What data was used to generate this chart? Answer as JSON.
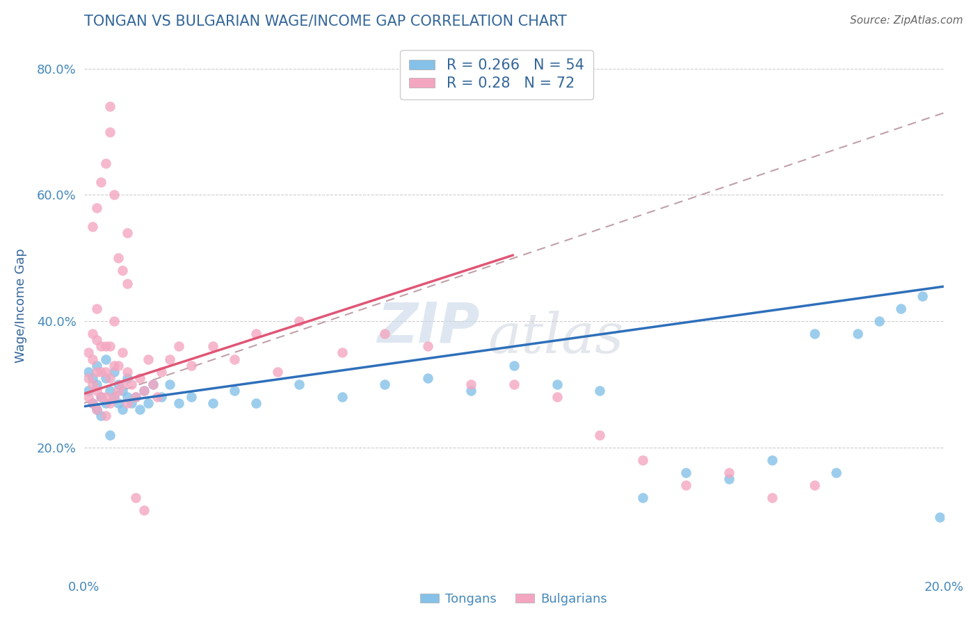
{
  "title": "TONGAN VS BULGARIAN WAGE/INCOME GAP CORRELATION CHART",
  "source": "Source: ZipAtlas.com",
  "ylabel": "Wage/Income Gap",
  "xlim": [
    0.0,
    0.2
  ],
  "ylim": [
    0.0,
    0.85
  ],
  "xticks": [
    0.0,
    0.05,
    0.1,
    0.15,
    0.2
  ],
  "xtick_labels": [
    "0.0%",
    "",
    "",
    "",
    "20.0%"
  ],
  "yticks": [
    0.2,
    0.4,
    0.6,
    0.8
  ],
  "ytick_labels": [
    "20.0%",
    "40.0%",
    "60.0%",
    "80.0%"
  ],
  "tongan_color": "#85c1e8",
  "bulgarian_color": "#f4a6c0",
  "tongan_line_color": "#2e6fba",
  "bulgarian_line_color": "#e05575",
  "R_tongan": 0.266,
  "N_tongan": 54,
  "R_bulgarian": 0.28,
  "N_bulgarian": 72,
  "background_color": "#ffffff",
  "grid_color": "#c8c8c8",
  "title_color": "#336699",
  "axis_label_color": "#336699",
  "tick_color": "#4488bb",
  "legend_text_color": "#336699",
  "watermark_zip": "ZIP",
  "watermark_atlas": "atlas",
  "tongan_scatter_x": [
    0.001,
    0.001,
    0.002,
    0.002,
    0.003,
    0.003,
    0.003,
    0.004,
    0.004,
    0.005,
    0.005,
    0.005,
    0.006,
    0.006,
    0.007,
    0.007,
    0.008,
    0.008,
    0.009,
    0.009,
    0.01,
    0.01,
    0.011,
    0.012,
    0.013,
    0.014,
    0.015,
    0.016,
    0.018,
    0.02,
    0.022,
    0.025,
    0.03,
    0.035,
    0.04,
    0.05,
    0.06,
    0.07,
    0.08,
    0.09,
    0.1,
    0.11,
    0.12,
    0.13,
    0.14,
    0.15,
    0.16,
    0.17,
    0.175,
    0.18,
    0.185,
    0.19,
    0.195,
    0.199
  ],
  "tongan_scatter_y": [
    0.29,
    0.32,
    0.27,
    0.31,
    0.26,
    0.3,
    0.33,
    0.28,
    0.25,
    0.27,
    0.31,
    0.34,
    0.29,
    0.22,
    0.28,
    0.32,
    0.27,
    0.3,
    0.26,
    0.29,
    0.28,
    0.31,
    0.27,
    0.28,
    0.26,
    0.29,
    0.27,
    0.3,
    0.28,
    0.3,
    0.27,
    0.28,
    0.27,
    0.29,
    0.27,
    0.3,
    0.28,
    0.3,
    0.31,
    0.29,
    0.33,
    0.3,
    0.29,
    0.12,
    0.16,
    0.15,
    0.18,
    0.38,
    0.16,
    0.38,
    0.4,
    0.42,
    0.44,
    0.09
  ],
  "bulgarian_scatter_x": [
    0.001,
    0.001,
    0.001,
    0.002,
    0.002,
    0.002,
    0.002,
    0.003,
    0.003,
    0.003,
    0.003,
    0.003,
    0.004,
    0.004,
    0.004,
    0.005,
    0.005,
    0.005,
    0.005,
    0.006,
    0.006,
    0.006,
    0.007,
    0.007,
    0.007,
    0.008,
    0.008,
    0.009,
    0.009,
    0.01,
    0.01,
    0.011,
    0.012,
    0.013,
    0.014,
    0.015,
    0.016,
    0.017,
    0.018,
    0.02,
    0.022,
    0.025,
    0.03,
    0.035,
    0.04,
    0.045,
    0.05,
    0.06,
    0.07,
    0.08,
    0.09,
    0.1,
    0.11,
    0.12,
    0.13,
    0.14,
    0.15,
    0.16,
    0.17,
    0.002,
    0.003,
    0.004,
    0.005,
    0.006,
    0.006,
    0.007,
    0.008,
    0.009,
    0.01,
    0.01,
    0.012,
    0.014
  ],
  "bulgarian_scatter_y": [
    0.28,
    0.31,
    0.35,
    0.27,
    0.3,
    0.34,
    0.38,
    0.26,
    0.29,
    0.32,
    0.37,
    0.42,
    0.28,
    0.32,
    0.36,
    0.25,
    0.28,
    0.32,
    0.36,
    0.27,
    0.31,
    0.36,
    0.28,
    0.33,
    0.4,
    0.29,
    0.33,
    0.3,
    0.35,
    0.27,
    0.32,
    0.3,
    0.28,
    0.31,
    0.29,
    0.34,
    0.3,
    0.28,
    0.32,
    0.34,
    0.36,
    0.33,
    0.36,
    0.34,
    0.38,
    0.32,
    0.4,
    0.35,
    0.38,
    0.36,
    0.3,
    0.3,
    0.28,
    0.22,
    0.18,
    0.14,
    0.16,
    0.12,
    0.14,
    0.55,
    0.58,
    0.62,
    0.65,
    0.7,
    0.74,
    0.6,
    0.5,
    0.48,
    0.46,
    0.54,
    0.12,
    0.1
  ],
  "tongan_line_x0": 0.0,
  "tongan_line_y0": 0.265,
  "tongan_line_x1": 0.2,
  "tongan_line_y1": 0.455,
  "bulgarian_line_x0": 0.0,
  "bulgarian_line_y0": 0.285,
  "bulgarian_line_x1": 0.1,
  "bulgarian_line_y1": 0.505,
  "dashed_line_x0": 0.0,
  "dashed_line_y0": 0.27,
  "dashed_line_x1": 0.2,
  "dashed_line_y1": 0.73
}
